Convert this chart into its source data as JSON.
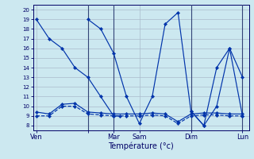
{
  "background_color": "#cce8f0",
  "grid_color": "#aabbcc",
  "line_color": "#0033aa",
  "xlabel": "Température (°c)",
  "ylim": [
    7.5,
    20.5
  ],
  "yticks": [
    8,
    9,
    10,
    11,
    12,
    13,
    14,
    15,
    16,
    17,
    18,
    19,
    20
  ],
  "x_tick_positions": [
    0,
    8,
    12,
    16,
    24,
    32
  ],
  "x_tick_labels": [
    "Ven",
    "",
    "Mar",
    "Sam",
    "Dim",
    "Lun"
  ],
  "xlim": [
    -0.5,
    33
  ],
  "vlines": [
    8,
    12,
    24,
    32
  ],
  "series": [
    {
      "x": [
        0,
        2,
        4,
        6,
        8,
        10,
        12,
        13
      ],
      "y": [
        19,
        17,
        16,
        14,
        13,
        11,
        9,
        9
      ],
      "style": "solid"
    },
    {
      "x": [
        0,
        2,
        4,
        6,
        8,
        10,
        12,
        14,
        16,
        18,
        20,
        22,
        24,
        26,
        28,
        30,
        32
      ],
      "y": [
        9,
        9,
        10,
        10,
        9.2,
        9.1,
        9.0,
        9.0,
        9.0,
        9.1,
        9.0,
        8.2,
        9.0,
        9.1,
        9.1,
        9.0,
        9.0
      ],
      "style": "dashed"
    },
    {
      "x": [
        0,
        2,
        4,
        6,
        8,
        10,
        12,
        14,
        16,
        18,
        20,
        22,
        24,
        26,
        28,
        30,
        32
      ],
      "y": [
        9.4,
        9.2,
        10.2,
        10.3,
        9.4,
        9.3,
        9.2,
        9.2,
        9.2,
        9.3,
        9.2,
        8.4,
        9.2,
        9.3,
        9.3,
        9.2,
        9.2
      ],
      "style": "solid"
    },
    {
      "x": [
        8,
        10,
        12,
        14,
        16,
        18,
        20,
        22,
        24,
        26,
        28,
        30,
        32
      ],
      "y": [
        19.0,
        18.0,
        15.5,
        11.0,
        8.2,
        11.0,
        18.5,
        19.7,
        9.5,
        8.0,
        14.0,
        16.0,
        13.0
      ],
      "style": "solid"
    },
    {
      "x": [
        24,
        26,
        28,
        30,
        32
      ],
      "y": [
        9.5,
        8.0,
        10.0,
        16.0,
        9.0
      ],
      "style": "solid"
    }
  ]
}
